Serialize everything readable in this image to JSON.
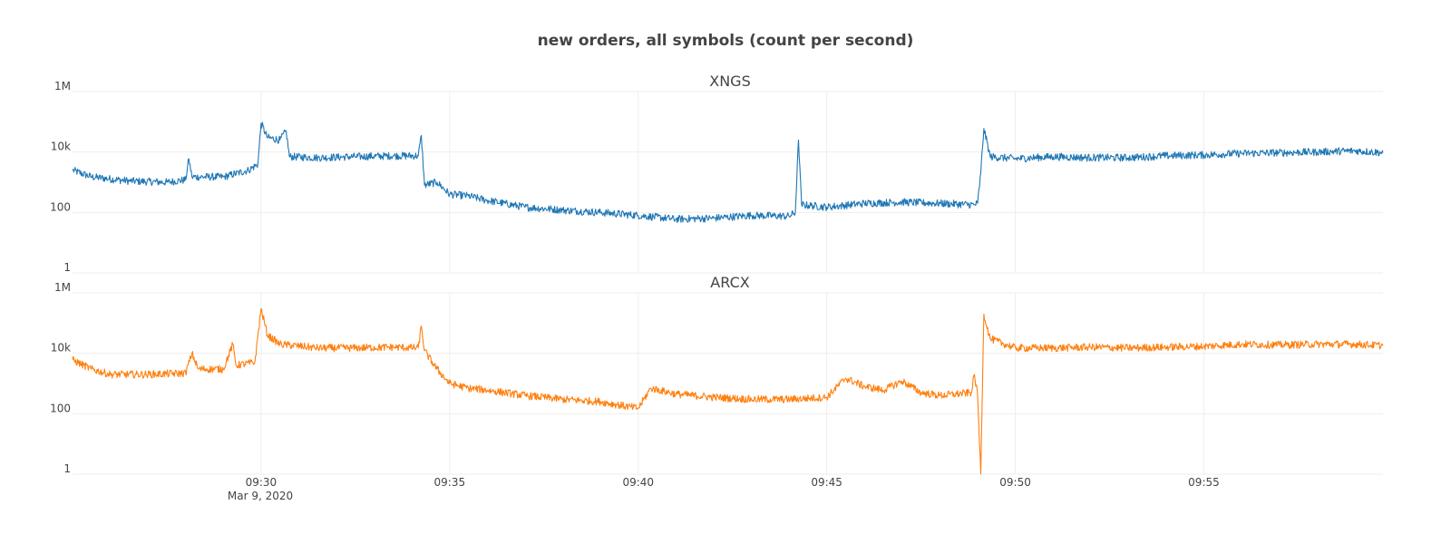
{
  "chart_data": {
    "type": "line",
    "title": "new orders, all symbols (count per second)",
    "date_label": "Mar 9, 2020",
    "x_range": [
      "09:25:00",
      "09:59:45"
    ],
    "x_ticks": [
      "09:30",
      "09:35",
      "09:40",
      "09:45",
      "09:50",
      "09:55"
    ],
    "y_scale": "log",
    "y_range": [
      1,
      1000000
    ],
    "y_ticks": [
      {
        "value": 1,
        "label": "1"
      },
      {
        "value": 100,
        "label": "100"
      },
      {
        "value": 10000,
        "label": "10k"
      },
      {
        "value": 1000000,
        "label": "1M"
      }
    ],
    "grid": true,
    "legend": "none",
    "panels": [
      {
        "name": "XNGS",
        "color": "#1f77b4",
        "noise": 0.25,
        "keypoints": [
          [
            "09:25:00",
            2500
          ],
          [
            "09:25:30",
            1500
          ],
          [
            "09:26:30",
            1100
          ],
          [
            "09:27:30",
            1000
          ],
          [
            "09:28:00",
            1200
          ],
          [
            "09:28:05",
            6000
          ],
          [
            "09:28:10",
            1500
          ],
          [
            "09:29:00",
            1500
          ],
          [
            "09:29:40",
            2500
          ],
          [
            "09:29:55",
            4000
          ],
          [
            "09:30:00",
            90000
          ],
          [
            "09:30:10",
            30000
          ],
          [
            "09:30:30",
            25000
          ],
          [
            "09:30:40",
            50000
          ],
          [
            "09:30:45",
            7000
          ],
          [
            "09:31:30",
            6500
          ],
          [
            "09:32:30",
            7000
          ],
          [
            "09:33:30",
            7500
          ],
          [
            "09:34:10",
            7500
          ],
          [
            "09:34:15",
            35000
          ],
          [
            "09:34:20",
            800
          ],
          [
            "09:34:40",
            1000
          ],
          [
            "09:35:00",
            400
          ],
          [
            "09:35:30",
            350
          ],
          [
            "09:36:00",
            250
          ],
          [
            "09:37:00",
            150
          ],
          [
            "09:38:00",
            120
          ],
          [
            "09:39:00",
            100
          ],
          [
            "09:40:00",
            80
          ],
          [
            "09:41:00",
            60
          ],
          [
            "09:42:00",
            65
          ],
          [
            "09:43:00",
            80
          ],
          [
            "09:44:00",
            75
          ],
          [
            "09:44:10",
            100
          ],
          [
            "09:44:15",
            25000
          ],
          [
            "09:44:20",
            180
          ],
          [
            "09:45:00",
            150
          ],
          [
            "09:46:00",
            200
          ],
          [
            "09:47:00",
            220
          ],
          [
            "09:48:00",
            200
          ],
          [
            "09:48:55",
            180
          ],
          [
            "09:49:00",
            200
          ],
          [
            "09:49:05",
            2000
          ],
          [
            "09:49:10",
            60000
          ],
          [
            "09:49:20",
            7000
          ],
          [
            "09:50:00",
            6000
          ],
          [
            "09:51:00",
            7000
          ],
          [
            "09:52:00",
            6500
          ],
          [
            "09:53:00",
            6500
          ],
          [
            "09:54:00",
            7500
          ],
          [
            "09:55:00",
            8000
          ],
          [
            "09:56:00",
            9000
          ],
          [
            "09:57:00",
            9500
          ],
          [
            "09:58:00",
            10000
          ],
          [
            "09:59:00",
            11000
          ],
          [
            "09:59:45",
            9500
          ]
        ]
      },
      {
        "name": "ARCX",
        "color": "#ff7f0e",
        "noise": 0.25,
        "keypoints": [
          [
            "09:25:00",
            6000
          ],
          [
            "09:25:30",
            3000
          ],
          [
            "09:26:00",
            2000
          ],
          [
            "09:27:00",
            2000
          ],
          [
            "09:28:00",
            2200
          ],
          [
            "09:28:10",
            10000
          ],
          [
            "09:28:20",
            3000
          ],
          [
            "09:29:00",
            3000
          ],
          [
            "09:29:15",
            20000
          ],
          [
            "09:29:20",
            4000
          ],
          [
            "09:29:50",
            5000
          ],
          [
            "09:30:00",
            300000
          ],
          [
            "09:30:10",
            40000
          ],
          [
            "09:30:30",
            20000
          ],
          [
            "09:31:30",
            15000
          ],
          [
            "09:32:30",
            15000
          ],
          [
            "09:33:30",
            16000
          ],
          [
            "09:34:10",
            15000
          ],
          [
            "09:34:15",
            80000
          ],
          [
            "09:34:20",
            12000
          ],
          [
            "09:34:40",
            3000
          ],
          [
            "09:35:00",
            1000
          ],
          [
            "09:35:30",
            700
          ],
          [
            "09:36:00",
            600
          ],
          [
            "09:37:00",
            400
          ],
          [
            "09:38:00",
            300
          ],
          [
            "09:39:00",
            250
          ],
          [
            "09:40:00",
            150
          ],
          [
            "09:40:20",
            700
          ],
          [
            "09:41:00",
            450
          ],
          [
            "09:42:00",
            350
          ],
          [
            "09:43:00",
            300
          ],
          [
            "09:44:00",
            300
          ],
          [
            "09:45:00",
            350
          ],
          [
            "09:45:30",
            1500
          ],
          [
            "09:46:00",
            800
          ],
          [
            "09:46:30",
            600
          ],
          [
            "09:47:00",
            1200
          ],
          [
            "09:47:30",
            500
          ],
          [
            "09:48:00",
            400
          ],
          [
            "09:48:50",
            500
          ],
          [
            "09:48:55",
            2000
          ],
          [
            "09:49:00",
            400
          ],
          [
            "09:49:05",
            1
          ],
          [
            "09:49:10",
            200000
          ],
          [
            "09:49:20",
            30000
          ],
          [
            "09:50:00",
            15000
          ],
          [
            "09:51:00",
            15000
          ],
          [
            "09:52:00",
            16000
          ],
          [
            "09:53:00",
            15000
          ],
          [
            "09:54:00",
            16000
          ],
          [
            "09:55:00",
            17000
          ],
          [
            "09:56:00",
            20000
          ],
          [
            "09:57:00",
            19000
          ],
          [
            "09:58:00",
            20000
          ],
          [
            "09:59:00",
            20000
          ],
          [
            "09:59:45",
            18000
          ]
        ]
      }
    ]
  }
}
